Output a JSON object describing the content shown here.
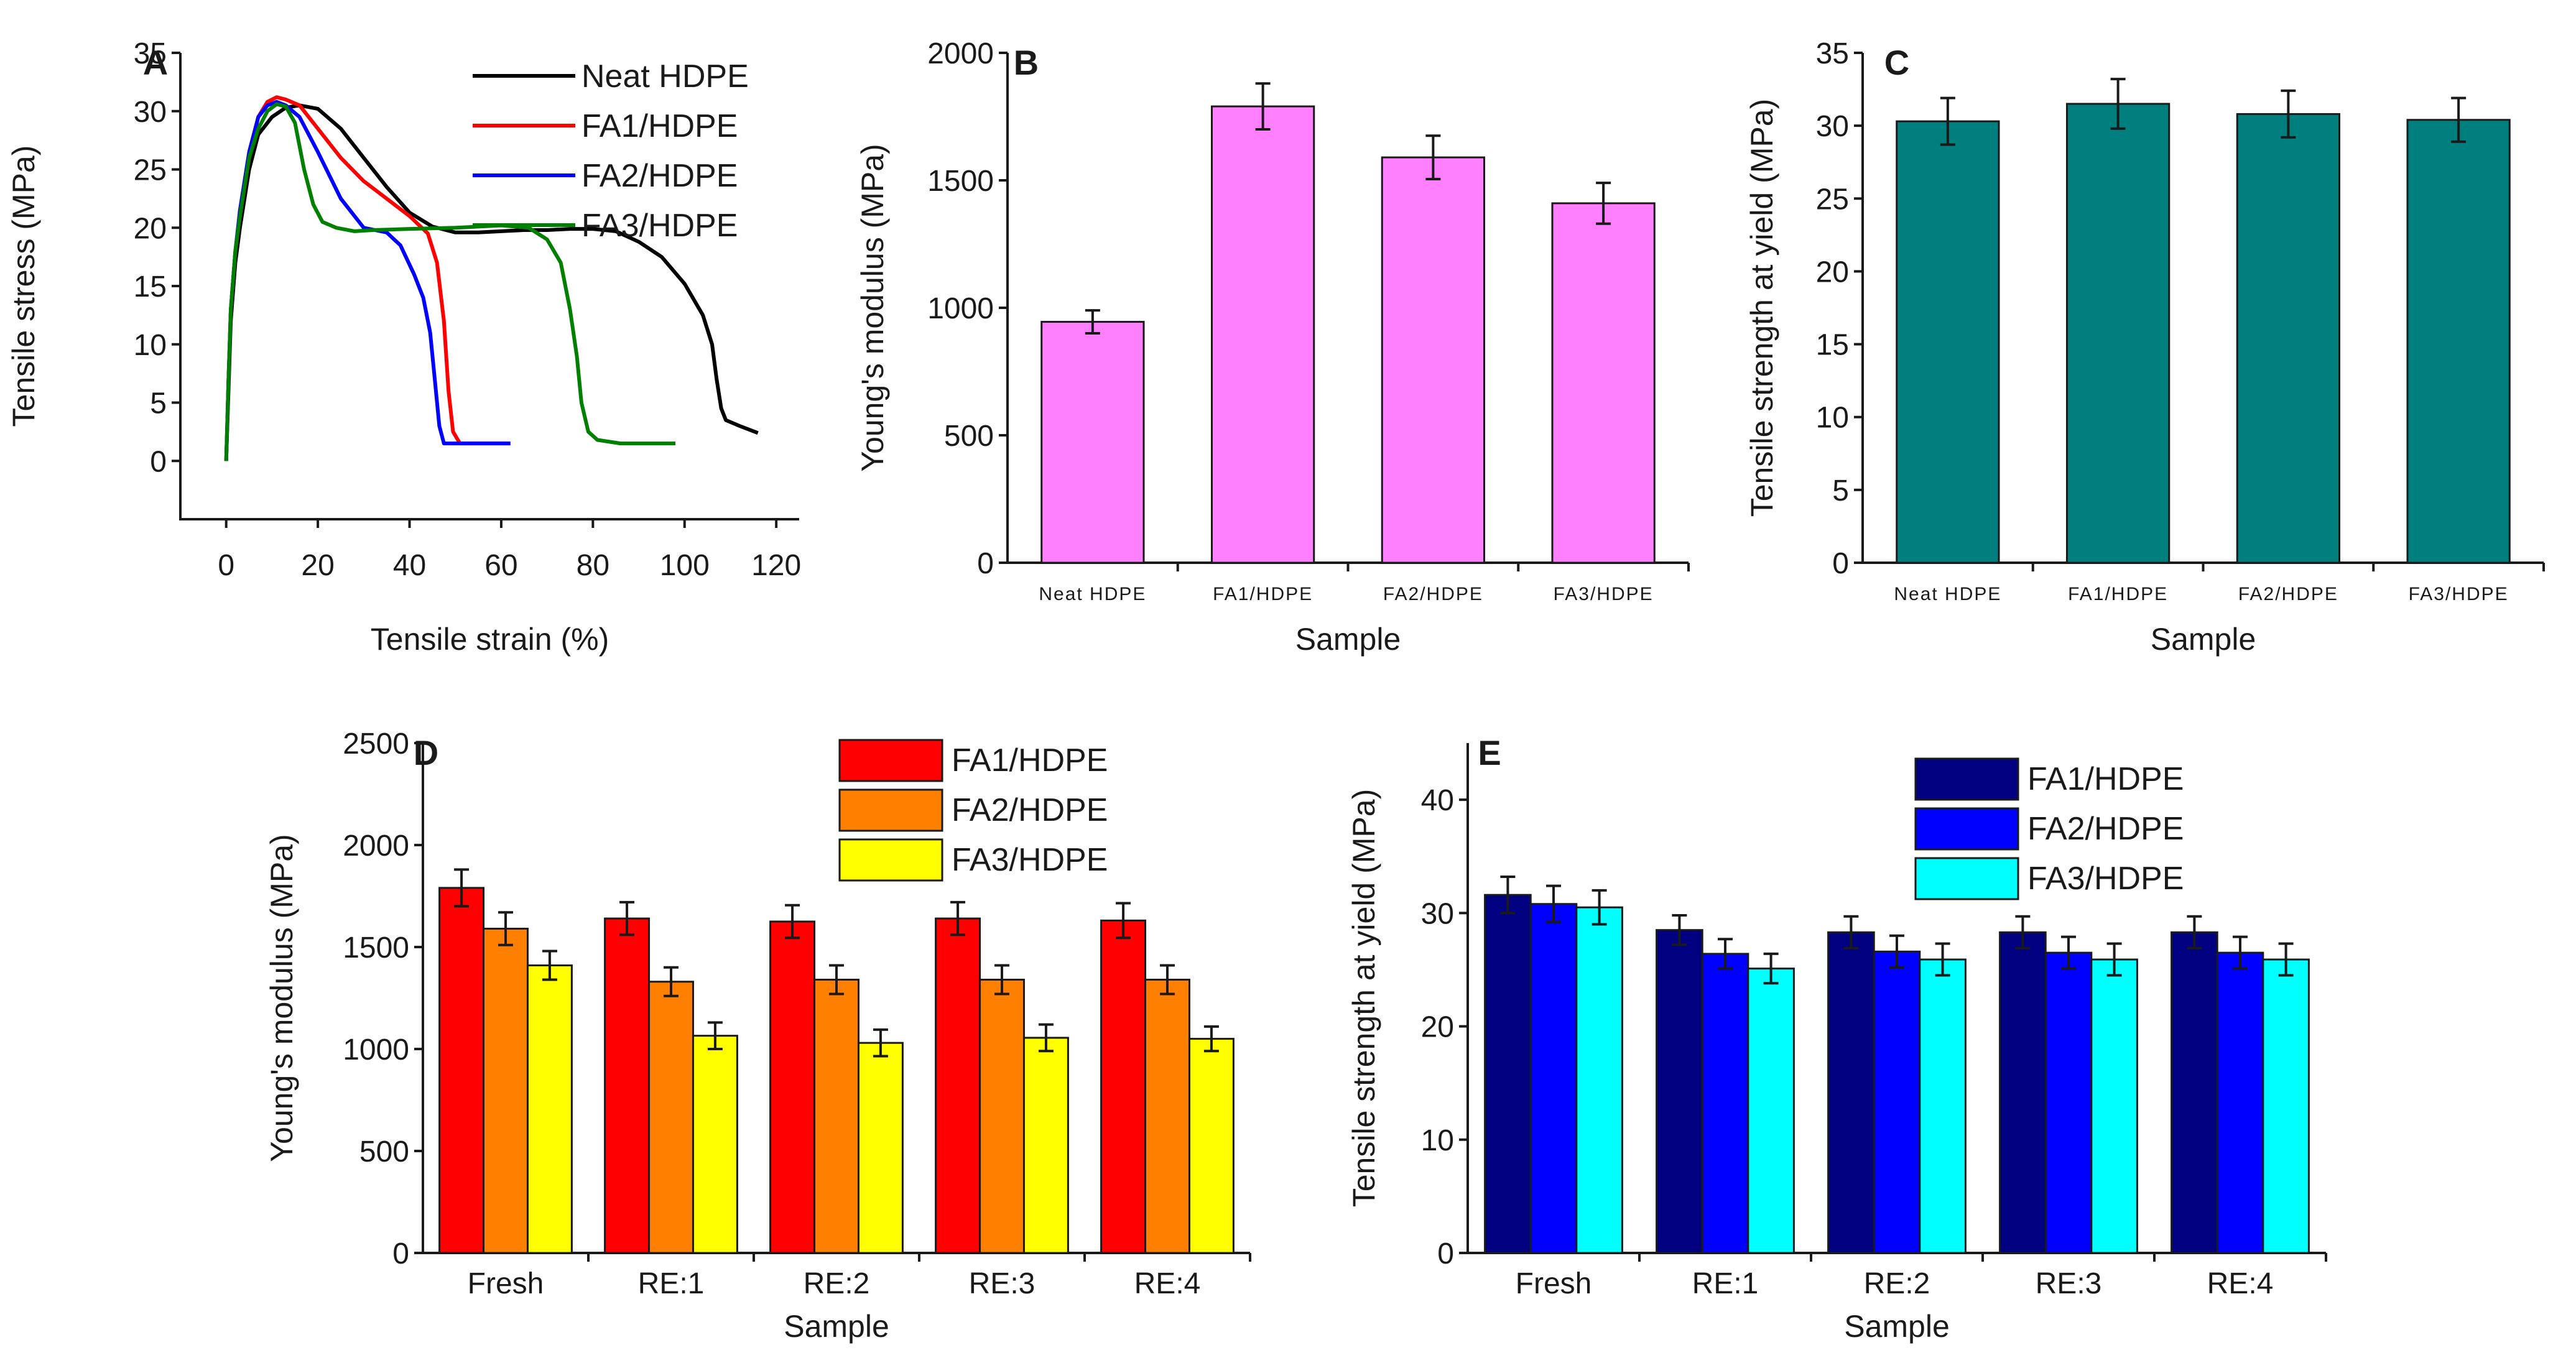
{
  "chart_data": [
    {
      "panel": "A",
      "type": "line",
      "xlabel": "Tensile strain (%)",
      "ylabel": "Tensile stress (MPa)",
      "xlim": [
        -10,
        125
      ],
      "ylim": [
        -5,
        35
      ],
      "xticks": [
        0,
        20,
        40,
        60,
        80,
        100,
        120
      ],
      "yticks": [
        0,
        5,
        10,
        15,
        20,
        25,
        30,
        35
      ],
      "legend": "top-right",
      "series": [
        {
          "name": "Neat HDPE",
          "color": "#000000",
          "points": [
            [
              0,
              0
            ],
            [
              0.5,
              6
            ],
            [
              1,
              12
            ],
            [
              2,
              17
            ],
            [
              3,
              20
            ],
            [
              5,
              25
            ],
            [
              7,
              28
            ],
            [
              10,
              29.5
            ],
            [
              13,
              30.3
            ],
            [
              16,
              30.5
            ],
            [
              20,
              30.2
            ],
            [
              25,
              28.5
            ],
            [
              30,
              26
            ],
            [
              35,
              23.5
            ],
            [
              40,
              21.3
            ],
            [
              45,
              20.1
            ],
            [
              50,
              19.6
            ],
            [
              55,
              19.6
            ],
            [
              60,
              19.7
            ],
            [
              65,
              19.8
            ],
            [
              70,
              19.8
            ],
            [
              75,
              19.9
            ],
            [
              80,
              19.9
            ],
            [
              85,
              19.7
            ],
            [
              90,
              18.8
            ],
            [
              95,
              17.5
            ],
            [
              100,
              15.2
            ],
            [
              104,
              12.5
            ],
            [
              106,
              10
            ],
            [
              107,
              7
            ],
            [
              108,
              4.5
            ],
            [
              109,
              3.5
            ],
            [
              112,
              3
            ],
            [
              116,
              2.4
            ]
          ]
        },
        {
          "name": "FA1/HDPE",
          "color": "#ff0000",
          "points": [
            [
              0,
              0
            ],
            [
              0.5,
              7
            ],
            [
              1,
              13
            ],
            [
              2,
              18
            ],
            [
              3,
              21
            ],
            [
              5,
              26
            ],
            [
              7,
              29.5
            ],
            [
              9,
              30.8
            ],
            [
              11,
              31.2
            ],
            [
              13,
              31
            ],
            [
              16,
              30.5
            ],
            [
              20,
              28.5
            ],
            [
              25,
              26
            ],
            [
              30,
              24
            ],
            [
              35,
              22.5
            ],
            [
              40,
              21
            ],
            [
              44,
              19.5
            ],
            [
              46,
              17
            ],
            [
              47.5,
              12
            ],
            [
              48.5,
              6
            ],
            [
              49.5,
              2.5
            ],
            [
              51,
              1.5
            ],
            [
              55,
              1.5
            ],
            [
              62,
              1.5
            ]
          ]
        },
        {
          "name": "FA2/HDPE",
          "color": "#0000ff",
          "points": [
            [
              0,
              0
            ],
            [
              0.5,
              7
            ],
            [
              1,
              13
            ],
            [
              2,
              18
            ],
            [
              3,
              21.5
            ],
            [
              5,
              26.5
            ],
            [
              7,
              29.5
            ],
            [
              9,
              30.5
            ],
            [
              11,
              30.8
            ],
            [
              13,
              30.5
            ],
            [
              16,
              29.5
            ],
            [
              20,
              26.5
            ],
            [
              25,
              22.5
            ],
            [
              30,
              20
            ],
            [
              35,
              19.6
            ],
            [
              38,
              18.5
            ],
            [
              41,
              16
            ],
            [
              43,
              14
            ],
            [
              44.5,
              11
            ],
            [
              45.5,
              7
            ],
            [
              46.5,
              3
            ],
            [
              47.5,
              1.5
            ],
            [
              52,
              1.5
            ],
            [
              62,
              1.5
            ]
          ]
        },
        {
          "name": "FA3/HDPE",
          "color": "#008000",
          "points": [
            [
              0,
              0
            ],
            [
              0.5,
              7
            ],
            [
              1,
              13
            ],
            [
              2,
              18
            ],
            [
              3,
              21
            ],
            [
              5,
              26
            ],
            [
              7,
              28.5
            ],
            [
              9,
              30
            ],
            [
              11,
              30.6
            ],
            [
              13,
              30.4
            ],
            [
              15,
              29
            ],
            [
              17,
              25
            ],
            [
              19,
              22
            ],
            [
              21,
              20.5
            ],
            [
              24,
              20
            ],
            [
              28,
              19.7
            ],
            [
              32,
              19.8
            ],
            [
              40,
              19.9
            ],
            [
              50,
              20
            ],
            [
              60,
              20.2
            ],
            [
              66,
              20
            ],
            [
              70,
              19
            ],
            [
              73,
              17
            ],
            [
              75,
              13
            ],
            [
              76.5,
              9
            ],
            [
              77.5,
              5
            ],
            [
              79,
              2.5
            ],
            [
              81,
              1.8
            ],
            [
              86,
              1.5
            ],
            [
              98,
              1.5
            ]
          ]
        }
      ]
    },
    {
      "panel": "B",
      "type": "bar",
      "xlabel": "Sample",
      "ylabel": "Young's modulus (MPa)",
      "ylim": [
        0,
        2000
      ],
      "yticks": [
        0,
        500,
        1000,
        1500,
        2000
      ],
      "categories": [
        "Neat HDPE",
        "FA1/HDPE",
        "FA2/HDPE",
        "FA3/HDPE"
      ],
      "color": "#ff80ff",
      "values": [
        945,
        1790,
        1590,
        1410
      ],
      "errors": [
        45,
        90,
        85,
        80
      ]
    },
    {
      "panel": "C",
      "type": "bar",
      "xlabel": "Sample",
      "ylabel": "Tensile strength at yield (MPa)",
      "ylim": [
        0,
        35
      ],
      "yticks": [
        0,
        5,
        10,
        15,
        20,
        25,
        30,
        35
      ],
      "categories": [
        "Neat HDPE",
        "FA1/HDPE",
        "FA2/HDPE",
        "FA3/HDPE"
      ],
      "color": "#007f7f",
      "values": [
        30.3,
        31.5,
        30.8,
        30.4
      ],
      "errors": [
        1.6,
        1.7,
        1.6,
        1.5
      ]
    },
    {
      "panel": "D",
      "type": "bar",
      "xlabel": "Sample",
      "ylabel": "Young's modulus (MPa)",
      "ylim": [
        0,
        2500
      ],
      "yticks": [
        0,
        500,
        1000,
        1500,
        2000,
        2500
      ],
      "categories": [
        "Fresh",
        "RE:1",
        "RE:2",
        "RE:3",
        "RE:4"
      ],
      "legend": "top-center",
      "series": [
        {
          "name": "FA1/HDPE",
          "color": "#ff0000",
          "values": [
            1790,
            1640,
            1625,
            1640,
            1630
          ],
          "errors": [
            90,
            80,
            80,
            80,
            85
          ]
        },
        {
          "name": "FA2/HDPE",
          "color": "#ff8000",
          "values": [
            1590,
            1330,
            1340,
            1340,
            1340
          ],
          "errors": [
            80,
            70,
            70,
            70,
            70
          ]
        },
        {
          "name": "FA3/HDPE",
          "color": "#ffff00",
          "values": [
            1410,
            1065,
            1030,
            1055,
            1050
          ],
          "errors": [
            70,
            65,
            65,
            65,
            60
          ]
        }
      ]
    },
    {
      "panel": "E",
      "type": "bar",
      "xlabel": "Sample",
      "ylabel": "Tensile strength at yield (MPa)",
      "ylim": [
        0,
        45
      ],
      "yticks": [
        0,
        10,
        20,
        30,
        40
      ],
      "categories": [
        "Fresh",
        "RE:1",
        "RE:2",
        "RE:3",
        "RE:4"
      ],
      "legend": "top-center",
      "series": [
        {
          "name": "FA1/HDPE",
          "color": "#000080",
          "values": [
            31.6,
            28.5,
            28.3,
            28.3,
            28.3
          ],
          "errors": [
            1.6,
            1.3,
            1.4,
            1.4,
            1.4
          ]
        },
        {
          "name": "FA2/HDPE",
          "color": "#0000ff",
          "values": [
            30.8,
            26.4,
            26.6,
            26.5,
            26.5
          ],
          "errors": [
            1.6,
            1.3,
            1.4,
            1.4,
            1.4
          ]
        },
        {
          "name": "FA3/HDPE",
          "color": "#00ffff",
          "values": [
            30.5,
            25.1,
            25.9,
            25.9,
            25.9
          ],
          "errors": [
            1.5,
            1.3,
            1.4,
            1.4,
            1.4
          ]
        }
      ]
    }
  ]
}
